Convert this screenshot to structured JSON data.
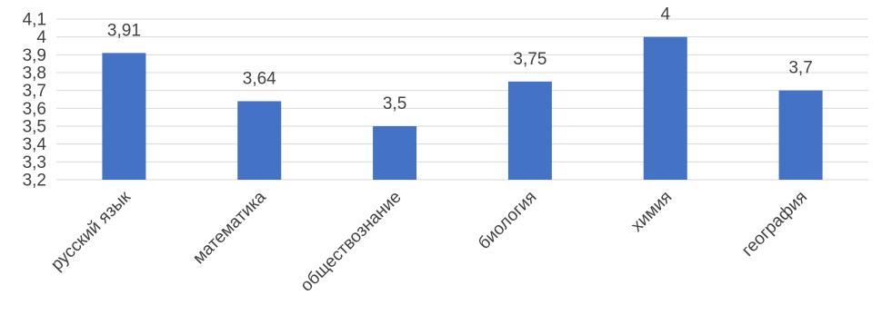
{
  "chart_data": {
    "type": "bar",
    "categories": [
      "русский язык",
      "математика",
      "обществознание",
      "биология",
      "химия",
      "география"
    ],
    "values": [
      3.91,
      3.64,
      3.5,
      3.75,
      4,
      3.7
    ],
    "value_labels": [
      "3,91",
      "3,64",
      "3,5",
      "3,75",
      "4",
      "3,7"
    ],
    "ylim": [
      3.2,
      4.1
    ],
    "yticks": [
      3.2,
      3.3,
      3.4,
      3.5,
      3.6,
      3.7,
      3.8,
      3.9,
      4.0,
      4.1
    ],
    "ytick_labels": [
      "3,2",
      "3,3",
      "3,4",
      "3,5",
      "3,6",
      "3,7",
      "3,8",
      "3,9",
      "4",
      "4,1"
    ],
    "grid": true,
    "legend": "none",
    "colors": {
      "bar": "#4472C4",
      "grid": "#d9d9d9",
      "text": "#404040"
    }
  }
}
